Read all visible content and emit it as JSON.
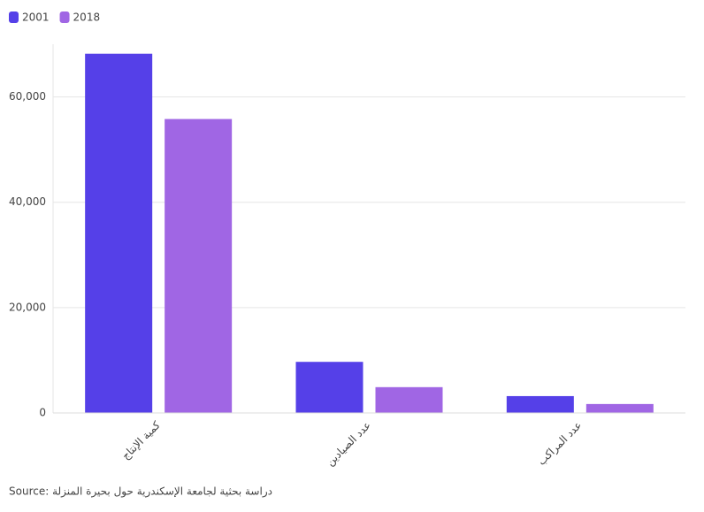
{
  "chart_data": {
    "type": "bar",
    "categories": [
      "كمية الإنتاج",
      "عدد الصيادين",
      "عدد المراكب"
    ],
    "series": [
      {
        "name": "2001",
        "color": "#5540e8",
        "values": [
          68200,
          9700,
          3200
        ]
      },
      {
        "name": "2018",
        "color": "#a066e4",
        "values": [
          55800,
          4900,
          1700
        ]
      }
    ],
    "ylim": [
      0,
      70000
    ],
    "yticks": [
      0,
      {
        "value": 20000,
        "label": "20,000"
      },
      {
        "value": 40000,
        "label": "40,000"
      },
      {
        "value": 60000,
        "label": "60,000"
      }
    ],
    "grid": true,
    "legend": "top-left",
    "source": "Source: دراسة بحثية لجامعة الإسكندرية حول بحيرة المنزلة"
  }
}
